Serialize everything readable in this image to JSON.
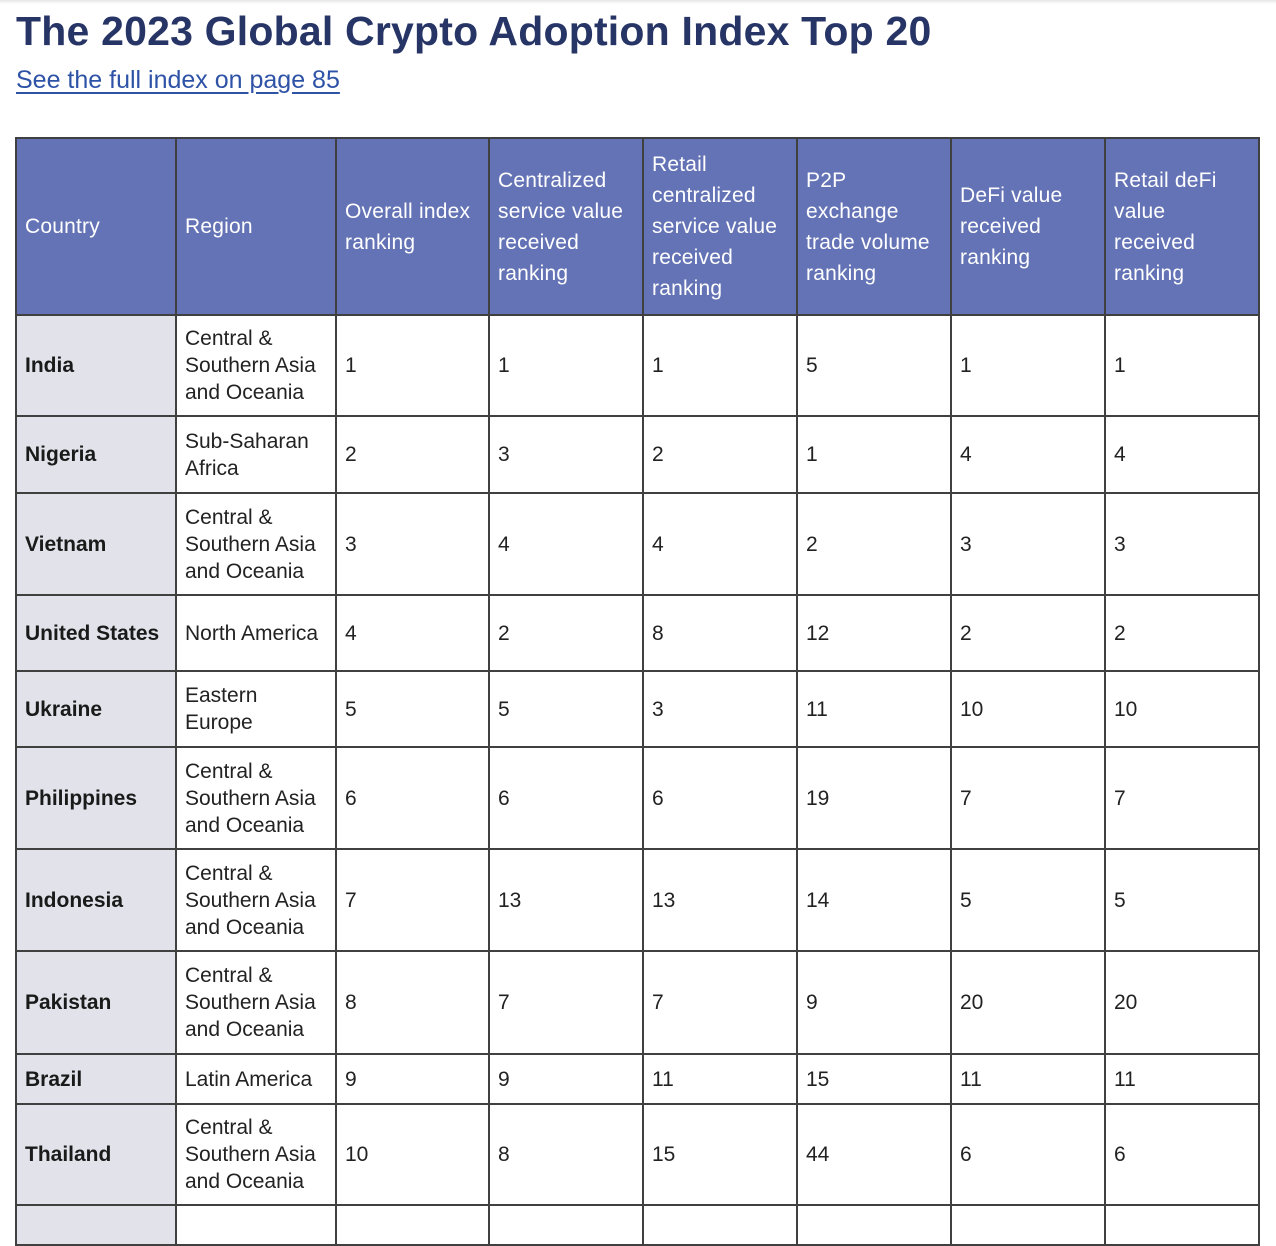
{
  "title": "The 2023 Global Crypto Adoption Index Top 20",
  "link_text": "See the full index on page 85",
  "headers": [
    "Country",
    "Region",
    "Overall index ranking",
    "Centralized service value received ranking",
    "Retail centralized service value received ranking",
    "P2P exchange trade volume ranking",
    "DeFi value received ranking",
    "Retail deFi value received ranking"
  ],
  "rows": [
    {
      "country": "India",
      "region": "Central & Southern Asia and Oceania",
      "overall": "1",
      "centralized": "1",
      "retail_centralized": "1",
      "p2p": "5",
      "defi": "1",
      "retail_defi": "1"
    },
    {
      "country": "Nigeria",
      "region": "Sub-Saharan Africa",
      "overall": "2",
      "centralized": "3",
      "retail_centralized": "2",
      "p2p": "1",
      "defi": "4",
      "retail_defi": "4"
    },
    {
      "country": "Vietnam",
      "region": "Central & Southern Asia and Oceania",
      "overall": "3",
      "centralized": "4",
      "retail_centralized": "4",
      "p2p": "2",
      "defi": "3",
      "retail_defi": "3"
    },
    {
      "country": "United States",
      "region": "North America",
      "overall": "4",
      "centralized": "2",
      "retail_centralized": "8",
      "p2p": "12",
      "defi": "2",
      "retail_defi": "2"
    },
    {
      "country": "Ukraine",
      "region": "Eastern Europe",
      "overall": "5",
      "centralized": "5",
      "retail_centralized": "3",
      "p2p": "11",
      "defi": "10",
      "retail_defi": "10"
    },
    {
      "country": "Philippines",
      "region": "Central & Southern Asia and Oceania",
      "overall": "6",
      "centralized": "6",
      "retail_centralized": "6",
      "p2p": "19",
      "defi": "7",
      "retail_defi": "7"
    },
    {
      "country": "Indonesia",
      "region": "Central & Southern Asia and Oceania",
      "overall": "7",
      "centralized": "13",
      "retail_centralized": "13",
      "p2p": "14",
      "defi": "5",
      "retail_defi": "5"
    },
    {
      "country": "Pakistan",
      "region": "Central & Southern Asia and Oceania",
      "overall": "8",
      "centralized": "7",
      "retail_centralized": "7",
      "p2p": "9",
      "defi": "20",
      "retail_defi": "20"
    },
    {
      "country": "Brazil",
      "region": "Latin America",
      "overall": "9",
      "centralized": "9",
      "retail_centralized": "11",
      "p2p": "15",
      "defi": "11",
      "retail_defi": "11"
    },
    {
      "country": "Thailand",
      "region": "Central & Southern Asia and Oceania",
      "overall": "10",
      "centralized": "8",
      "retail_centralized": "15",
      "p2p": "44",
      "defi": "6",
      "retail_defi": "6"
    }
  ]
}
